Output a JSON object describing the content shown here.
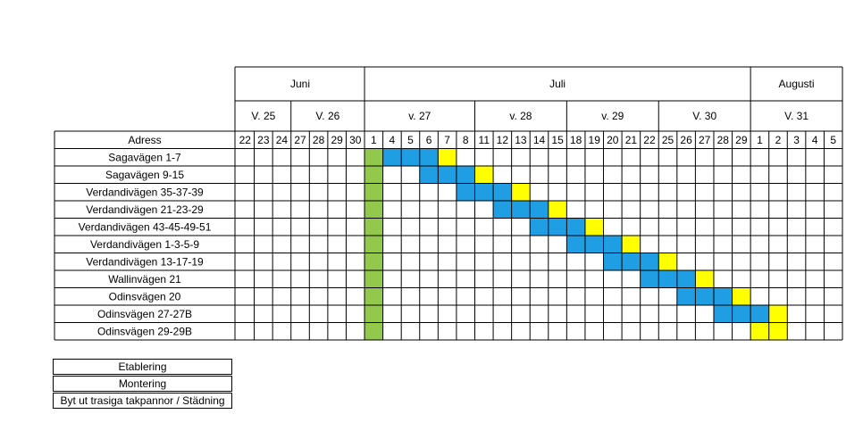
{
  "colors": {
    "etablering": "#92c94c",
    "montering": "#1f9ee3",
    "stadning": "#ffff00"
  },
  "months": [
    "Juni",
    "Juli",
    "Augusti"
  ],
  "weeks": [
    "V. 25",
    "V. 26",
    "v. 27",
    "v. 28",
    "v. 29",
    "V. 30",
    "V. 31"
  ],
  "address_header": "Adress",
  "days": [
    "22",
    "23",
    "24",
    "27",
    "28",
    "29",
    "30",
    "1",
    "4",
    "5",
    "6",
    "7",
    "8",
    "11",
    "12",
    "13",
    "14",
    "15",
    "18",
    "19",
    "20",
    "21",
    "22",
    "25",
    "26",
    "27",
    "28",
    "29",
    "1",
    "2",
    "3",
    "4",
    "5"
  ],
  "rows": [
    {
      "address": "Sagavägen 1-7",
      "etablering": [
        7
      ],
      "montering": [
        8,
        9,
        10
      ],
      "stadning": [
        11
      ]
    },
    {
      "address": "Sagavägen 9-15",
      "etablering": [
        7
      ],
      "montering": [
        10,
        11,
        12
      ],
      "stadning": [
        13
      ]
    },
    {
      "address": "Verdandivägen 35-37-39",
      "etablering": [
        7
      ],
      "montering": [
        12,
        13,
        14
      ],
      "stadning": [
        15
      ]
    },
    {
      "address": "Verdandivägen 21-23-29",
      "etablering": [
        7
      ],
      "montering": [
        14,
        15,
        16
      ],
      "stadning": [
        17
      ]
    },
    {
      "address": "Verdandivägen 43-45-49-51",
      "etablering": [
        7
      ],
      "montering": [
        16,
        17,
        18
      ],
      "stadning": [
        19
      ]
    },
    {
      "address": "Verdandivägen 1-3-5-9",
      "etablering": [
        7
      ],
      "montering": [
        18,
        19,
        20
      ],
      "stadning": [
        21
      ]
    },
    {
      "address": "Verdandivägen 13-17-19",
      "etablering": [
        7
      ],
      "montering": [
        20,
        21,
        22
      ],
      "stadning": [
        23
      ]
    },
    {
      "address": "Wallinvägen 21",
      "etablering": [
        7
      ],
      "montering": [
        22,
        23,
        24
      ],
      "stadning": [
        25
      ]
    },
    {
      "address": "Odinsvägen 20",
      "etablering": [
        7
      ],
      "montering": [
        24,
        25,
        26
      ],
      "stadning": [
        27
      ]
    },
    {
      "address": "Odinsvägen 27-27B",
      "etablering": [
        7
      ],
      "montering": [
        26,
        27,
        28
      ],
      "stadning": [
        29
      ]
    },
    {
      "address": "Odinsvägen 29-29B",
      "etablering": [
        7
      ],
      "montering": [],
      "stadning": [
        28,
        29
      ]
    }
  ],
  "legend": {
    "etablering": "Etablering",
    "montering": "Montering",
    "stadning": "Byt ut trasiga takpannor / Städning"
  }
}
